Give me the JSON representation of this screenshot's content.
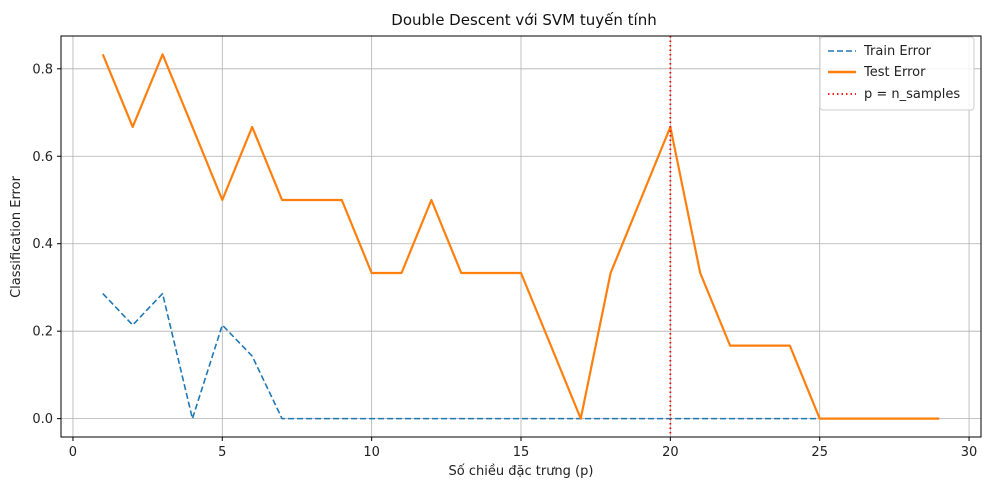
{
  "chart_data": {
    "type": "line",
    "title": "Double Descent với SVM tuyến tính",
    "xlabel": "Số chiều đặc trưng (p)",
    "ylabel": "Classification Error",
    "xlim": [
      -0.4,
      30.4
    ],
    "ylim": [
      -0.042,
      0.875
    ],
    "x_ticks": [
      0,
      5,
      10,
      15,
      20,
      25,
      30
    ],
    "y_ticks": [
      0.0,
      0.2,
      0.4,
      0.6,
      0.8
    ],
    "grid": true,
    "legend_position": "top-right",
    "x": [
      1,
      2,
      3,
      4,
      5,
      6,
      7,
      8,
      9,
      10,
      11,
      12,
      13,
      14,
      15,
      16,
      17,
      18,
      19,
      20,
      21,
      22,
      23,
      24,
      25,
      26,
      27,
      28,
      29
    ],
    "series": [
      {
        "name": "Train Error",
        "color": "#1f77b4",
        "style": "dashed",
        "values": [
          0.286,
          0.214,
          0.286,
          0.0,
          0.214,
          0.143,
          0.0,
          0.0,
          0.0,
          0.0,
          0.0,
          0.0,
          0.0,
          0.0,
          0.0,
          0.0,
          0.0,
          0.0,
          0.0,
          0.0,
          0.0,
          0.0,
          0.0,
          0.0,
          0.0,
          0.0,
          0.0,
          0.0,
          0.0
        ]
      },
      {
        "name": "Test Error",
        "color": "#ff7f0e",
        "style": "solid",
        "values": [
          0.833,
          0.667,
          0.833,
          0.667,
          0.5,
          0.667,
          0.5,
          0.5,
          0.5,
          0.333,
          0.333,
          0.5,
          0.333,
          0.333,
          0.333,
          0.167,
          0.0,
          0.333,
          0.5,
          0.667,
          0.333,
          0.167,
          0.167,
          0.167,
          0.0,
          0.0,
          0.0,
          0.0,
          0.0
        ]
      }
    ],
    "vline": {
      "name": "p = n_samples",
      "x": 20,
      "color": "#ff0000",
      "style": "dotted"
    }
  }
}
